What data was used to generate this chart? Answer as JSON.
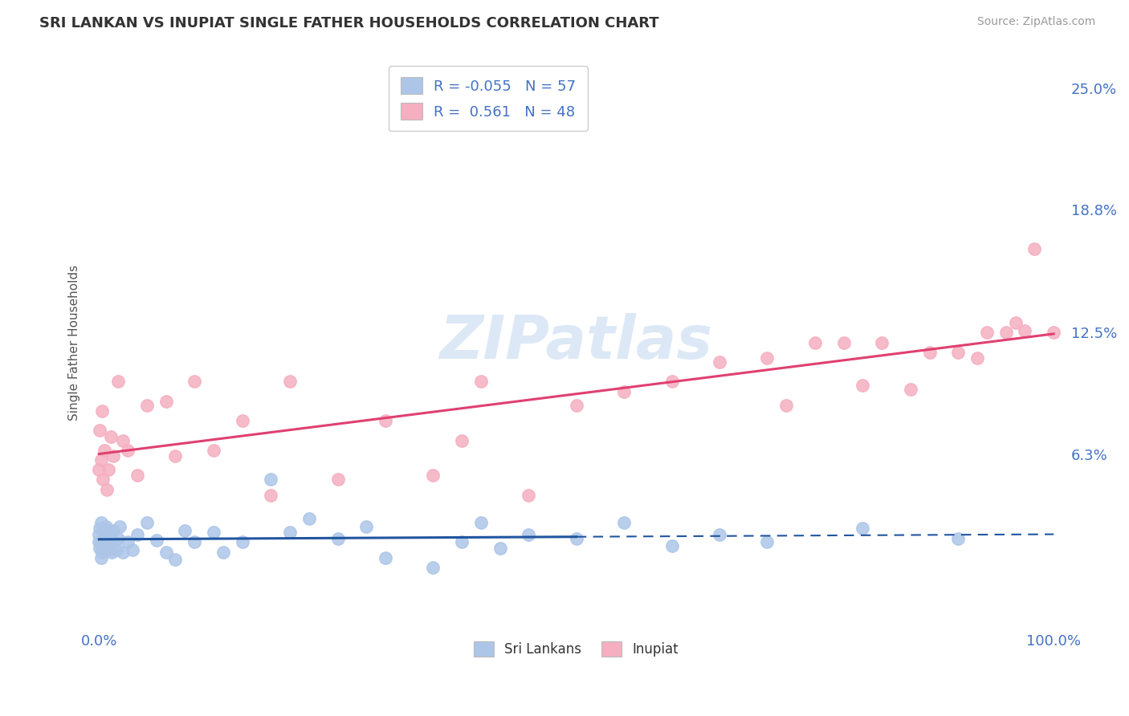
{
  "title": "SRI LANKAN VS INUPIAT SINGLE FATHER HOUSEHOLDS CORRELATION CHART",
  "source": "Source: ZipAtlas.com",
  "ylabel": "Single Father Households",
  "ytick_labels": [
    "6.3%",
    "12.5%",
    "18.8%",
    "25.0%"
  ],
  "ytick_values": [
    0.063,
    0.125,
    0.188,
    0.25
  ],
  "xlim": [
    -0.01,
    1.01
  ],
  "ylim": [
    -0.025,
    0.265
  ],
  "sri_lankan_color": "#adc6e8",
  "inupiat_color": "#f5afc0",
  "sri_lankan_line_color": "#2155a0",
  "inupiat_line_color": "#e04070",
  "label_color": "#4472c4",
  "R_srilanka": -0.055,
  "N_srilanka": 57,
  "R_inupiat": 0.561,
  "N_inupiat": 48,
  "background_color": "#ffffff",
  "grid_color": "#cccccc",
  "title_color": "#333333",
  "source_color": "#999999",
  "watermark_color": "#dce8f5",
  "sl_x": [
    0.0,
    0.0,
    0.001,
    0.001,
    0.002,
    0.002,
    0.002,
    0.003,
    0.003,
    0.004,
    0.005,
    0.006,
    0.007,
    0.007,
    0.008,
    0.009,
    0.01,
    0.01,
    0.011,
    0.012,
    0.013,
    0.015,
    0.016,
    0.018,
    0.02,
    0.022,
    0.025,
    0.03,
    0.035,
    0.04,
    0.05,
    0.06,
    0.07,
    0.08,
    0.09,
    0.1,
    0.12,
    0.13,
    0.15,
    0.18,
    0.2,
    0.22,
    0.25,
    0.28,
    0.3,
    0.35,
    0.38,
    0.4,
    0.42,
    0.45,
    0.5,
    0.55,
    0.6,
    0.65,
    0.7,
    0.8,
    0.9
  ],
  "sl_y": [
    0.018,
    0.022,
    0.015,
    0.025,
    0.01,
    0.018,
    0.028,
    0.013,
    0.024,
    0.02,
    0.016,
    0.021,
    0.026,
    0.014,
    0.019,
    0.023,
    0.014,
    0.024,
    0.018,
    0.022,
    0.013,
    0.024,
    0.018,
    0.014,
    0.02,
    0.026,
    0.013,
    0.018,
    0.014,
    0.022,
    0.028,
    0.019,
    0.013,
    0.009,
    0.024,
    0.018,
    0.023,
    0.013,
    0.018,
    0.05,
    0.023,
    0.03,
    0.02,
    0.026,
    0.01,
    0.005,
    0.018,
    0.028,
    0.015,
    0.022,
    0.02,
    0.028,
    0.016,
    0.022,
    0.018,
    0.025,
    0.02
  ],
  "in_x": [
    0.0,
    0.001,
    0.002,
    0.003,
    0.004,
    0.006,
    0.008,
    0.01,
    0.012,
    0.015,
    0.02,
    0.025,
    0.03,
    0.04,
    0.05,
    0.07,
    0.08,
    0.1,
    0.12,
    0.15,
    0.18,
    0.2,
    0.25,
    0.3,
    0.35,
    0.38,
    0.4,
    0.45,
    0.5,
    0.55,
    0.6,
    0.65,
    0.7,
    0.72,
    0.75,
    0.78,
    0.8,
    0.82,
    0.85,
    0.87,
    0.9,
    0.92,
    0.93,
    0.95,
    0.96,
    0.97,
    0.98,
    1.0
  ],
  "in_y": [
    0.055,
    0.075,
    0.06,
    0.085,
    0.05,
    0.065,
    0.045,
    0.055,
    0.072,
    0.062,
    0.1,
    0.07,
    0.065,
    0.052,
    0.088,
    0.09,
    0.062,
    0.1,
    0.065,
    0.08,
    0.042,
    0.1,
    0.05,
    0.08,
    0.052,
    0.07,
    0.1,
    0.042,
    0.088,
    0.095,
    0.1,
    0.11,
    0.112,
    0.088,
    0.12,
    0.12,
    0.098,
    0.12,
    0.096,
    0.115,
    0.115,
    0.112,
    0.125,
    0.125,
    0.13,
    0.126,
    0.168,
    0.125
  ]
}
